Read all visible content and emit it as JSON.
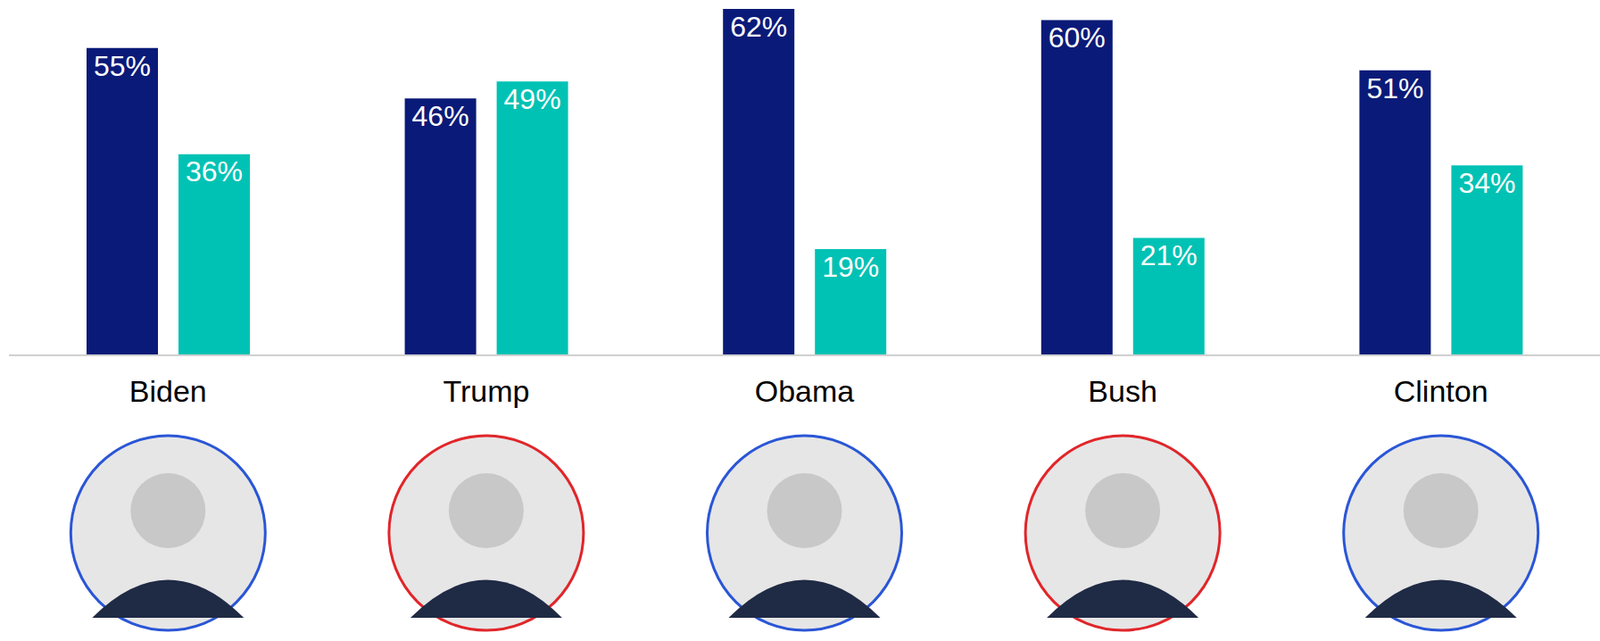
{
  "chart_data": {
    "type": "bar",
    "categories": [
      "Biden",
      "Trump",
      "Obama",
      "Bush",
      "Clinton"
    ],
    "series": [
      {
        "color": "#0a1a78",
        "values": [
          55,
          46,
          62,
          60,
          51
        ],
        "value_labels": [
          "55%",
          "46%",
          "62%",
          "60%",
          "51%"
        ]
      },
      {
        "color": "#00c2b4",
        "values": [
          36,
          49,
          19,
          21,
          34
        ],
        "value_labels": [
          "36%",
          "49%",
          "19%",
          "21%",
          "34%"
        ]
      }
    ],
    "ylim": [
      0,
      62
    ],
    "tick_labels": "x",
    "data_labels": true,
    "grid": false
  }
}
